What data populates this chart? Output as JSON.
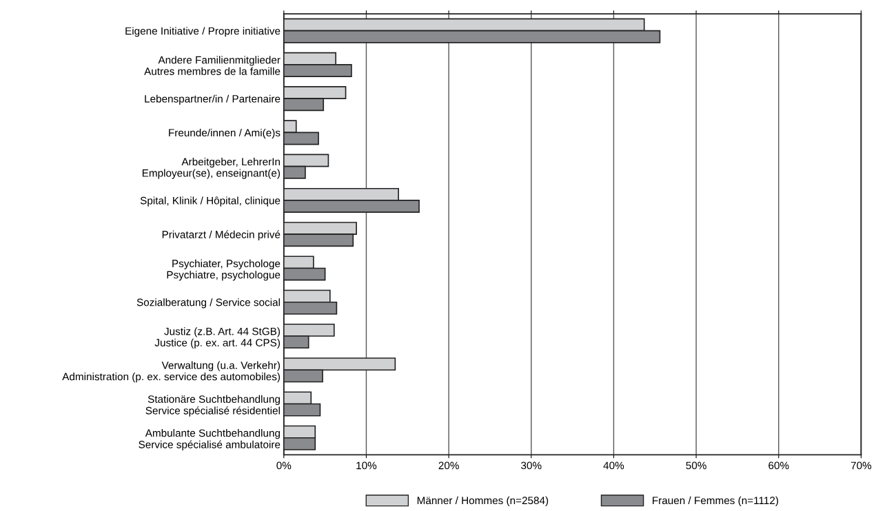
{
  "chart_data": {
    "type": "bar",
    "orientation": "horizontal",
    "categories": [
      "Eigene Initiative / Propre initiative",
      "Andere Familienmitglieder\nAutres membres de la famille",
      "Lebenspartner/in / Partenaire",
      "Freunde/innen / Ami(e)s",
      "Arbeitgeber, LehrerIn\nEmployeur(se), enseignant(e)",
      "Spital, Klinik / Hôpital, clinique",
      "Privatarzt / Médecin privé",
      "Psychiater, Psychologe\nPsychiatre, psychologue",
      "Sozialberatung / Service social",
      "Justiz (z.B. Art. 44 StGB)\nJustice (p. ex. art. 44 CPS)",
      "Verwaltung (u.a. Verkehr)\nAdministration (p. ex. service des automobiles)",
      "Stationäre Suchtbehandlung\nService spécialisé résidentiel",
      "Ambulante Suchtbehandlung\nService spécialisé ambulatoire"
    ],
    "series": [
      {
        "name": "Männer / Hommes (n=2584)",
        "color": "#d0d1d3",
        "values": [
          43.7,
          6.3,
          7.5,
          1.5,
          5.4,
          13.9,
          8.8,
          3.6,
          5.6,
          6.1,
          13.5,
          3.3,
          3.8
        ]
      },
      {
        "name": "Frauen / Femmes (n=1112)",
        "color": "#8a8b8f",
        "values": [
          45.6,
          8.2,
          4.8,
          4.2,
          2.6,
          16.4,
          8.4,
          5.0,
          6.4,
          3.0,
          4.7,
          4.4,
          3.8
        ]
      }
    ],
    "xlim": [
      0,
      70
    ],
    "xticks": [
      {
        "value": 0,
        "label": "0%"
      },
      {
        "value": 10,
        "label": "10%"
      },
      {
        "value": 20,
        "label": "20%"
      },
      {
        "value": 30,
        "label": "30%"
      },
      {
        "value": 40,
        "label": "40%"
      },
      {
        "value": 50,
        "label": "50%"
      },
      {
        "value": 60,
        "label": "60%"
      },
      {
        "value": 70,
        "label": "70%"
      }
    ],
    "grid": "x",
    "legend": "bottom"
  }
}
